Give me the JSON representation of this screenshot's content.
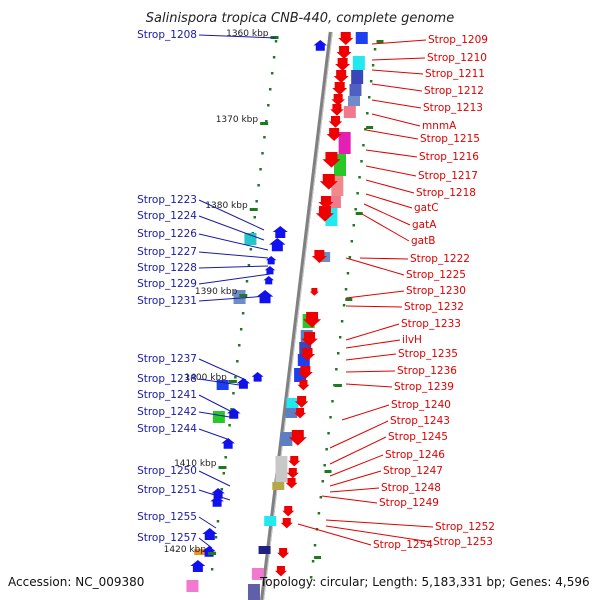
{
  "title": "Salinispora tropica CNB-440, complete genome",
  "accession": "Accession: NC_009380",
  "topology": "Topology: circular; Length: 5,183,331 bp; Genes: 4,596",
  "colors": {
    "left_label": "#1a1aa8",
    "right_label": "#e00000",
    "backbone": "#808080",
    "tick": "#1e7a1e"
  },
  "kbp_ticks": [
    "1360 kbp",
    "1370 kbp",
    "1380 kbp",
    "1390 kbp",
    "1400 kbp",
    "1410 kbp",
    "1420 kbp"
  ],
  "left_genes": [
    "Strop_1208",
    "Strop_1223",
    "Strop_1224",
    "Strop_1226",
    "Strop_1227",
    "Strop_1228",
    "Strop_1229",
    "Strop_1231",
    "Strop_1237",
    "Strop_1238",
    "Strop_1241",
    "Strop_1242",
    "Strop_1244",
    "Strop_1250",
    "Strop_1251",
    "Strop_1255",
    "Strop_1257"
  ],
  "right_genes": [
    "Strop_1209",
    "Strop_1210",
    "Strop_1211",
    "Strop_1212",
    "Strop_1213",
    "mnmA",
    "Strop_1215",
    "Strop_1216",
    "Strop_1217",
    "Strop_1218",
    "gatC",
    "gatA",
    "gatB",
    "Strop_1222",
    "Strop_1225",
    "Strop_1230",
    "Strop_1232",
    "Strop_1233",
    "ilvH",
    "Strop_1235",
    "Strop_1236",
    "Strop_1239",
    "Strop_1240",
    "Strop_1243",
    "Strop_1245",
    "Strop_1246",
    "Strop_1247",
    "Strop_1248",
    "Strop_1249",
    "Strop_1252",
    "Strop_1253",
    "Strop_1254"
  ]
}
